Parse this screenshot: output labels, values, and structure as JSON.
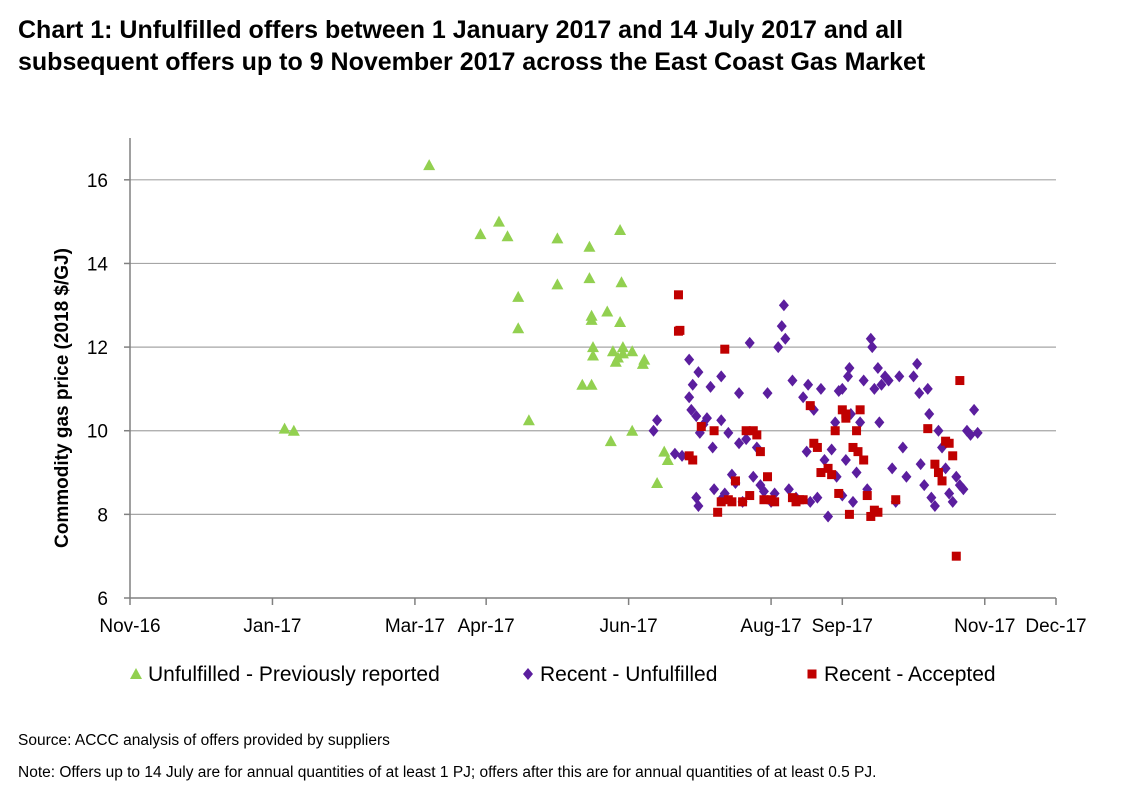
{
  "chart_data": {
    "type": "scatter",
    "title_lines": [
      "Chart 1: Unfulfilled offers between 1 January 2017 and 14 July 2017 and all",
      "subsequent offers up to 9 November 2017 across the East Coast Gas Market"
    ],
    "ylabel": "Commodity gas price (2018 $/GJ)",
    "xlabel": "",
    "ylim": [
      6,
      17
    ],
    "yticks": [
      6,
      8,
      10,
      12,
      14,
      16
    ],
    "x_unit": "months since 1 Nov 2016",
    "xlim": [
      0,
      13
    ],
    "xticks": [
      {
        "value": 0,
        "label": "Nov-16"
      },
      {
        "value": 2,
        "label": "Jan-17"
      },
      {
        "value": 4,
        "label": "Mar-17"
      },
      {
        "value": 5,
        "label": "Apr-17"
      },
      {
        "value": 7,
        "label": "Jun-17"
      },
      {
        "value": 9,
        "label": "Aug-17"
      },
      {
        "value": 10,
        "label": "Sep-17"
      },
      {
        "value": 12,
        "label": "Nov-17"
      },
      {
        "value": 13,
        "label": "Dec-17"
      }
    ],
    "grid": "horizontal",
    "legend_position": "bottom",
    "series": [
      {
        "name": "Unfulfilled - Previously reported",
        "marker": "triangle",
        "color": "#92d050",
        "points": [
          [
            2.17,
            10.05
          ],
          [
            2.3,
            10.0
          ],
          [
            4.2,
            16.35
          ],
          [
            4.92,
            14.7
          ],
          [
            5.18,
            15.0
          ],
          [
            5.3,
            14.65
          ],
          [
            5.45,
            13.2
          ],
          [
            5.45,
            12.45
          ],
          [
            5.6,
            10.25
          ],
          [
            6.0,
            14.6
          ],
          [
            6.0,
            13.5
          ],
          [
            6.35,
            11.1
          ],
          [
            6.45,
            14.4
          ],
          [
            6.45,
            13.65
          ],
          [
            6.48,
            12.75
          ],
          [
            6.48,
            12.65
          ],
          [
            6.5,
            12.0
          ],
          [
            6.5,
            11.8
          ],
          [
            6.48,
            11.1
          ],
          [
            6.7,
            12.85
          ],
          [
            6.75,
            9.75
          ],
          [
            6.78,
            11.9
          ],
          [
            6.82,
            11.65
          ],
          [
            6.85,
            11.75
          ],
          [
            6.88,
            14.8
          ],
          [
            6.9,
            13.55
          ],
          [
            6.88,
            12.6
          ],
          [
            6.92,
            12.0
          ],
          [
            6.92,
            11.85
          ],
          [
            7.05,
            11.9
          ],
          [
            7.2,
            11.6
          ],
          [
            7.22,
            11.7
          ],
          [
            7.05,
            10.0
          ],
          [
            7.4,
            8.75
          ],
          [
            7.5,
            9.5
          ],
          [
            7.55,
            9.3
          ]
        ]
      },
      {
        "name": "Recent - Unfulfilled",
        "marker": "diamond",
        "color": "#5b1e9e",
        "points": [
          [
            7.35,
            10.0
          ],
          [
            7.4,
            10.25
          ],
          [
            7.65,
            9.45
          ],
          [
            7.75,
            9.4
          ],
          [
            7.85,
            11.7
          ],
          [
            7.85,
            10.8
          ],
          [
            7.88,
            10.5
          ],
          [
            7.9,
            11.1
          ],
          [
            7.95,
            10.35
          ],
          [
            7.98,
            11.4
          ],
          [
            7.95,
            8.4
          ],
          [
            7.98,
            8.2
          ],
          [
            8.0,
            9.95
          ],
          [
            8.05,
            10.15
          ],
          [
            8.1,
            10.3
          ],
          [
            8.15,
            11.05
          ],
          [
            8.18,
            9.6
          ],
          [
            8.2,
            8.6
          ],
          [
            8.3,
            10.25
          ],
          [
            8.3,
            11.3
          ],
          [
            8.32,
            8.4
          ],
          [
            8.35,
            8.5
          ],
          [
            8.4,
            9.95
          ],
          [
            8.45,
            8.95
          ],
          [
            8.5,
            8.75
          ],
          [
            8.55,
            10.9
          ],
          [
            8.55,
            9.7
          ],
          [
            8.6,
            8.3
          ],
          [
            8.65,
            9.8
          ],
          [
            8.7,
            12.1
          ],
          [
            8.75,
            8.9
          ],
          [
            8.8,
            9.6
          ],
          [
            8.85,
            8.7
          ],
          [
            8.9,
            8.55
          ],
          [
            8.95,
            10.9
          ],
          [
            9.0,
            8.3
          ],
          [
            9.05,
            8.5
          ],
          [
            9.1,
            12.0
          ],
          [
            9.15,
            12.5
          ],
          [
            9.18,
            13.0
          ],
          [
            9.2,
            12.2
          ],
          [
            9.25,
            8.6
          ],
          [
            9.3,
            11.2
          ],
          [
            9.35,
            8.4
          ],
          [
            9.45,
            10.8
          ],
          [
            9.5,
            9.5
          ],
          [
            9.52,
            11.1
          ],
          [
            9.55,
            8.3
          ],
          [
            9.6,
            10.5
          ],
          [
            9.65,
            8.4
          ],
          [
            9.7,
            11.0
          ],
          [
            9.75,
            9.3
          ],
          [
            9.8,
            7.95
          ],
          [
            9.85,
            9.55
          ],
          [
            9.9,
            10.2
          ],
          [
            9.92,
            8.9
          ],
          [
            9.95,
            10.95
          ],
          [
            10.0,
            11.0
          ],
          [
            10.0,
            8.45
          ],
          [
            10.05,
            9.3
          ],
          [
            10.08,
            11.3
          ],
          [
            10.1,
            11.5
          ],
          [
            10.12,
            10.4
          ],
          [
            10.15,
            8.3
          ],
          [
            10.2,
            9.0
          ],
          [
            10.25,
            10.2
          ],
          [
            10.3,
            11.2
          ],
          [
            10.35,
            8.6
          ],
          [
            10.4,
            12.2
          ],
          [
            10.42,
            12.0
          ],
          [
            10.45,
            11.0
          ],
          [
            10.5,
            11.5
          ],
          [
            10.52,
            10.2
          ],
          [
            10.55,
            11.1
          ],
          [
            10.6,
            11.3
          ],
          [
            10.65,
            11.2
          ],
          [
            10.7,
            9.1
          ],
          [
            10.75,
            8.3
          ],
          [
            10.8,
            11.3
          ],
          [
            10.85,
            9.6
          ],
          [
            10.9,
            8.9
          ],
          [
            11.0,
            11.3
          ],
          [
            11.05,
            11.6
          ],
          [
            11.08,
            10.9
          ],
          [
            11.1,
            9.2
          ],
          [
            11.15,
            8.7
          ],
          [
            11.2,
            11.0
          ],
          [
            11.22,
            10.4
          ],
          [
            11.25,
            8.4
          ],
          [
            11.3,
            8.2
          ],
          [
            11.35,
            10.0
          ],
          [
            11.4,
            9.6
          ],
          [
            11.45,
            9.1
          ],
          [
            11.5,
            8.5
          ],
          [
            11.55,
            8.3
          ],
          [
            11.6,
            8.9
          ],
          [
            11.65,
            8.7
          ],
          [
            11.7,
            8.6
          ],
          [
            11.75,
            10.0
          ],
          [
            11.8,
            9.9
          ],
          [
            11.85,
            10.5
          ],
          [
            11.9,
            9.95
          ]
        ]
      },
      {
        "name": "Recent - Accepted",
        "marker": "square",
        "color": "#c00000",
        "points": [
          [
            7.7,
            13.25
          ],
          [
            7.72,
            12.4
          ],
          [
            7.7,
            12.38
          ],
          [
            7.85,
            9.4
          ],
          [
            7.9,
            9.3
          ],
          [
            8.02,
            10.1
          ],
          [
            8.2,
            10.0
          ],
          [
            8.25,
            8.05
          ],
          [
            8.3,
            8.3
          ],
          [
            8.35,
            11.95
          ],
          [
            8.4,
            8.35
          ],
          [
            8.45,
            8.3
          ],
          [
            8.5,
            8.8
          ],
          [
            8.6,
            8.3
          ],
          [
            8.65,
            10.0
          ],
          [
            8.7,
            8.45
          ],
          [
            8.75,
            10.0
          ],
          [
            8.8,
            9.9
          ],
          [
            8.85,
            9.5
          ],
          [
            8.9,
            8.35
          ],
          [
            8.95,
            8.9
          ],
          [
            9.0,
            8.35
          ],
          [
            9.05,
            8.3
          ],
          [
            9.3,
            8.4
          ],
          [
            9.35,
            8.3
          ],
          [
            9.4,
            8.35
          ],
          [
            9.45,
            8.35
          ],
          [
            9.55,
            10.6
          ],
          [
            9.6,
            9.7
          ],
          [
            9.65,
            9.6
          ],
          [
            9.7,
            9.0
          ],
          [
            9.8,
            9.1
          ],
          [
            9.85,
            8.95
          ],
          [
            9.9,
            10.0
          ],
          [
            9.95,
            8.5
          ],
          [
            10.0,
            10.5
          ],
          [
            10.05,
            10.4
          ],
          [
            10.05,
            10.3
          ],
          [
            10.1,
            8.0
          ],
          [
            10.15,
            9.6
          ],
          [
            10.2,
            10.0
          ],
          [
            10.22,
            9.5
          ],
          [
            10.25,
            10.5
          ],
          [
            10.3,
            9.3
          ],
          [
            10.35,
            8.45
          ],
          [
            10.4,
            7.95
          ],
          [
            10.45,
            8.1
          ],
          [
            10.5,
            8.05
          ],
          [
            10.75,
            8.35
          ],
          [
            11.2,
            10.05
          ],
          [
            11.3,
            9.2
          ],
          [
            11.35,
            9.0
          ],
          [
            11.4,
            8.8
          ],
          [
            11.45,
            9.75
          ],
          [
            11.5,
            9.7
          ],
          [
            11.55,
            9.4
          ],
          [
            11.6,
            7.0
          ],
          [
            11.65,
            11.2
          ]
        ]
      }
    ]
  },
  "footer": {
    "source": "Source: ACCC analysis of offers provided by suppliers",
    "note": "Note: Offers up to 14 July are for annual quantities of at least 1 PJ; offers after this are for annual quantities of at least 0.5 PJ."
  }
}
